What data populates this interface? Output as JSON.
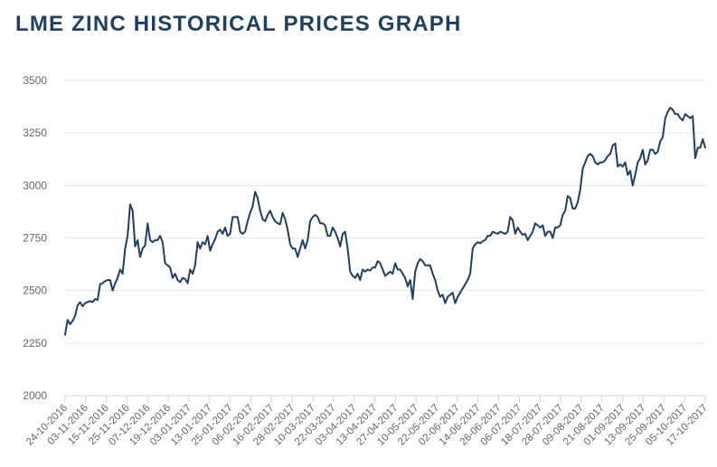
{
  "chart_data": {
    "type": "line",
    "title": "LME ZINC HISTORICAL PRICES GRAPH",
    "xlabel": "",
    "ylabel": "",
    "ylim": [
      2000,
      3500
    ],
    "yticks": [
      2000,
      2250,
      2500,
      2750,
      3000,
      3250,
      3500
    ],
    "grid": true,
    "line_color": "#1f3f63",
    "x_tick_labels": [
      "24-10-2016",
      "03-11-2016",
      "15-11-2016",
      "25-11-2016",
      "07-12-2016",
      "19-12-2016",
      "03-01-2017",
      "13-01-2017",
      "25-01-2017",
      "06-02-2017",
      "16-02-2017",
      "28-02-2017",
      "10-03-2017",
      "22-03-2017",
      "03-04-2017",
      "13-04-2017",
      "27-04-2017",
      "10-05-2017",
      "22-05-2017",
      "02-06-2017",
      "14-06-2017",
      "26-06-2017",
      "06-07-2017",
      "18-07-2017",
      "28-07-2017",
      "09-08-2017",
      "21-08-2017",
      "01-09-2017",
      "13-09-2017",
      "25-09-2017",
      "05-10-2017",
      "17-10-2017"
    ],
    "series": [
      {
        "name": "LME Zinc",
        "values": [
          2290,
          2360,
          2340,
          2355,
          2380,
          2430,
          2445,
          2425,
          2440,
          2445,
          2450,
          2445,
          2460,
          2455,
          2530,
          2535,
          2545,
          2550,
          2550,
          2500,
          2535,
          2560,
          2600,
          2580,
          2700,
          2760,
          2910,
          2880,
          2710,
          2740,
          2660,
          2700,
          2715,
          2820,
          2740,
          2730,
          2740,
          2740,
          2760,
          2730,
          2630,
          2620,
          2610,
          2560,
          2580,
          2550,
          2540,
          2560,
          2555,
          2535,
          2600,
          2580,
          2620,
          2730,
          2700,
          2730,
          2720,
          2760,
          2690,
          2720,
          2745,
          2780,
          2790,
          2770,
          2800,
          2760,
          2770,
          2850,
          2850,
          2850,
          2780,
          2770,
          2780,
          2830,
          2870,
          2900,
          2970,
          2940,
          2880,
          2840,
          2830,
          2860,
          2880,
          2850,
          2830,
          2820,
          2815,
          2870,
          2840,
          2790,
          2720,
          2700,
          2700,
          2660,
          2700,
          2740,
          2700,
          2740,
          2830,
          2850,
          2860,
          2850,
          2820,
          2820,
          2810,
          2760,
          2760,
          2800,
          2780,
          2750,
          2710,
          2770,
          2780,
          2700,
          2590,
          2570,
          2560,
          2580,
          2550,
          2600,
          2590,
          2600,
          2595,
          2610,
          2610,
          2640,
          2630,
          2600,
          2570,
          2580,
          2590,
          2580,
          2630,
          2600,
          2600,
          2580,
          2560,
          2520,
          2550,
          2460,
          2590,
          2630,
          2650,
          2640,
          2620,
          2620,
          2620,
          2580,
          2550,
          2500,
          2470,
          2480,
          2440,
          2470,
          2480,
          2490,
          2440,
          2470,
          2490,
          2510,
          2530,
          2550,
          2580,
          2700,
          2720,
          2730,
          2725,
          2735,
          2740,
          2760,
          2760,
          2780,
          2775,
          2770,
          2780,
          2775,
          2770,
          2780,
          2850,
          2835,
          2770,
          2800,
          2780,
          2765,
          2770,
          2740,
          2760,
          2780,
          2820,
          2810,
          2800,
          2810,
          2760,
          2780,
          2780,
          2750,
          2800,
          2800,
          2810,
          2860,
          2880,
          2950,
          2940,
          2890,
          2890,
          2920,
          2980,
          3080,
          3110,
          3140,
          3150,
          3140,
          3110,
          3100,
          3110,
          3110,
          3120,
          3140,
          3150,
          3190,
          3200,
          3090,
          3100,
          3090,
          3110,
          3050,
          3070,
          3000,
          3050,
          3110,
          3130,
          3170,
          3100,
          3120,
          3170,
          3170,
          3150,
          3160,
          3210,
          3230,
          3320,
          3350,
          3370,
          3360,
          3340,
          3340,
          3320,
          3310,
          3340,
          3330,
          3320,
          3330,
          3130,
          3180,
          3180,
          3220,
          3180
        ]
      }
    ]
  }
}
